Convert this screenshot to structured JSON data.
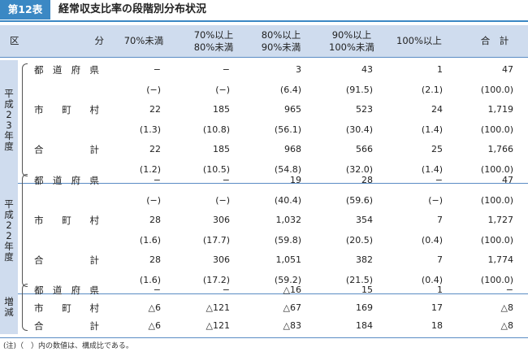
{
  "title": {
    "label": "第12表",
    "text": "経常収支比率の段階別分布状況"
  },
  "header": {
    "row_label": "区分",
    "columns": [
      [
        "70%未満"
      ],
      [
        "70%以上",
        "80%未満"
      ],
      [
        "80%以上",
        "90%未満"
      ],
      [
        "90%以上",
        "100%未満"
      ],
      [
        "100%以上"
      ],
      [
        "合　計"
      ]
    ]
  },
  "groups": [
    {
      "name": "平成23年度",
      "rows": [
        {
          "label": "都道府県",
          "values": [
            "−",
            "−",
            "3",
            "43",
            "1",
            "47"
          ],
          "ratios": [
            "(−)",
            "(−)",
            "(6.4)",
            "(91.5)",
            "(2.1)",
            "(100.0)"
          ]
        },
        {
          "label": "市町村",
          "values": [
            "22",
            "185",
            "965",
            "523",
            "24",
            "1,719"
          ],
          "ratios": [
            "(1.3)",
            "(10.8)",
            "(56.1)",
            "(30.4)",
            "(1.4)",
            "(100.0)"
          ]
        },
        {
          "label": "合計",
          "values": [
            "22",
            "185",
            "968",
            "566",
            "25",
            "1,766"
          ],
          "ratios": [
            "(1.2)",
            "(10.5)",
            "(54.8)",
            "(32.0)",
            "(1.4)",
            "(100.0)"
          ]
        }
      ]
    },
    {
      "name": "平成22年度",
      "rows": [
        {
          "label": "都道府県",
          "values": [
            "−",
            "−",
            "19",
            "28",
            "−",
            "47"
          ],
          "ratios": [
            "(−)",
            "(−)",
            "(40.4)",
            "(59.6)",
            "(−)",
            "(100.0)"
          ]
        },
        {
          "label": "市町村",
          "values": [
            "28",
            "306",
            "1,032",
            "354",
            "7",
            "1,727"
          ],
          "ratios": [
            "(1.6)",
            "(17.7)",
            "(59.8)",
            "(20.5)",
            "(0.4)",
            "(100.0)"
          ]
        },
        {
          "label": "合計",
          "values": [
            "28",
            "306",
            "1,051",
            "382",
            "7",
            "1,774"
          ],
          "ratios": [
            "(1.6)",
            "(17.2)",
            "(59.2)",
            "(21.5)",
            "(0.4)",
            "(100.0)"
          ]
        }
      ]
    },
    {
      "name": "増減",
      "rows": [
        {
          "label": "都道府県",
          "values": [
            "−",
            "−",
            "△16",
            "15",
            "1",
            "−"
          ]
        },
        {
          "label": "市町村",
          "values": [
            "△6",
            "△121",
            "△67",
            "169",
            "17",
            "△8"
          ]
        },
        {
          "label": "合計",
          "values": [
            "△6",
            "△121",
            "△83",
            "184",
            "18",
            "△8"
          ]
        }
      ]
    }
  ],
  "note": "(注)（　）内の数値は、構成比である。"
}
